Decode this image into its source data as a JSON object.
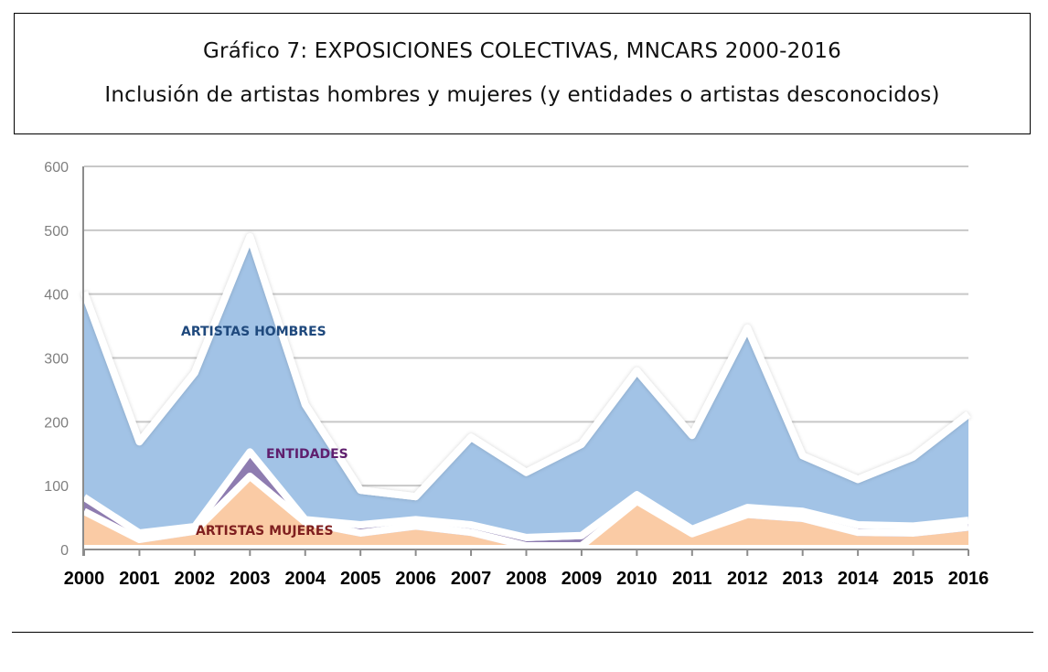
{
  "title": {
    "line1": "Gráfico 7: EXPOSICIONES COLECTIVAS, MNCARS 2000-2016",
    "line2": "Inclusión de artistas hombres y mujeres (y entidades o artistas desconocidos)"
  },
  "chart_data": {
    "type": "area",
    "stacked": true,
    "title": "Gráfico 7: EXPOSICIONES COLECTIVAS, MNCARS 2000-2016",
    "subtitle": "Inclusión de artistas hombres y mujeres (y entidades o artistas desconocidos)",
    "xlabel": "",
    "ylabel": "",
    "ylim": [
      0,
      600
    ],
    "yticks": [
      0,
      100,
      200,
      300,
      400,
      500,
      600
    ],
    "grid": true,
    "categories": [
      "2000",
      "2001",
      "2002",
      "2003",
      "2004",
      "2005",
      "2006",
      "2007",
      "2008",
      "2009",
      "2010",
      "2011",
      "2012",
      "2013",
      "2014",
      "2015",
      "2016"
    ],
    "series": [
      {
        "name": "ARTISTAS MUJERES",
        "color": "#FACBA5",
        "label_color": "#7F1F1F",
        "values": [
          54,
          10,
          23,
          109,
          37,
          20,
          31,
          21,
          0,
          0,
          70,
          19,
          49,
          43,
          21,
          20,
          29
        ]
      },
      {
        "name": "ENTIDADES",
        "color": "#8E7CB0",
        "label_color": "#5F1F6E",
        "values": [
          22,
          10,
          7,
          38,
          4,
          13,
          10,
          12,
          13,
          16,
          10,
          7,
          11,
          11,
          12,
          11,
          11
        ]
      },
      {
        "name": "ARTISTAS HOMBRES",
        "color": "#A2C3E6",
        "label_color": "#1F497D",
        "values": [
          321,
          143,
          241,
          337,
          180,
          54,
          36,
          137,
          102,
          143,
          194,
          147,
          281,
          87,
          71,
          108,
          166
        ]
      }
    ],
    "legend": "inline labels"
  },
  "colors": {
    "gridline": "#c8c8c8",
    "axis": "#8c8c8c",
    "glow": "#ffffff"
  }
}
